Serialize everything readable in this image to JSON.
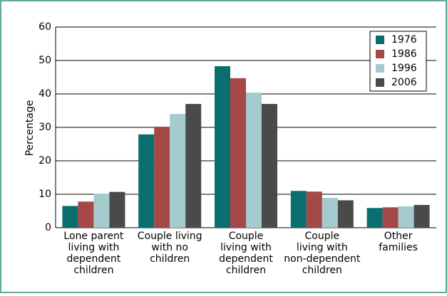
{
  "chart_data": {
    "type": "bar",
    "y_label": "Percentage",
    "categories": [
      [
        "Lone parent",
        "living with",
        "dependent",
        "children"
      ],
      [
        "Couple living",
        "with no",
        "children"
      ],
      [
        "Couple",
        "living with",
        "dependent",
        "children"
      ],
      [
        "Couple",
        "living with",
        "non-dependent",
        "children"
      ],
      [
        "Other",
        "families"
      ]
    ],
    "series": [
      {
        "name": "1976",
        "color": "#0b6e6e",
        "values": [
          6.5,
          27.9,
          48.3,
          11,
          5.9
        ]
      },
      {
        "name": "1986",
        "color": "#a54848",
        "values": [
          7.8,
          30.2,
          44.7,
          10.8,
          6.1
        ]
      },
      {
        "name": "1996",
        "color": "#a6cbcf",
        "values": [
          10.2,
          34,
          40.4,
          8.9,
          6.4
        ]
      },
      {
        "name": "2006",
        "color": "#4a4a4a",
        "values": [
          10.7,
          37,
          37,
          8.2,
          6.8
        ]
      }
    ],
    "ylim": [
      0,
      60
    ],
    "yticks": [
      0,
      10,
      20,
      30,
      40,
      50,
      60
    ],
    "grid": true,
    "legend": "top-right"
  }
}
